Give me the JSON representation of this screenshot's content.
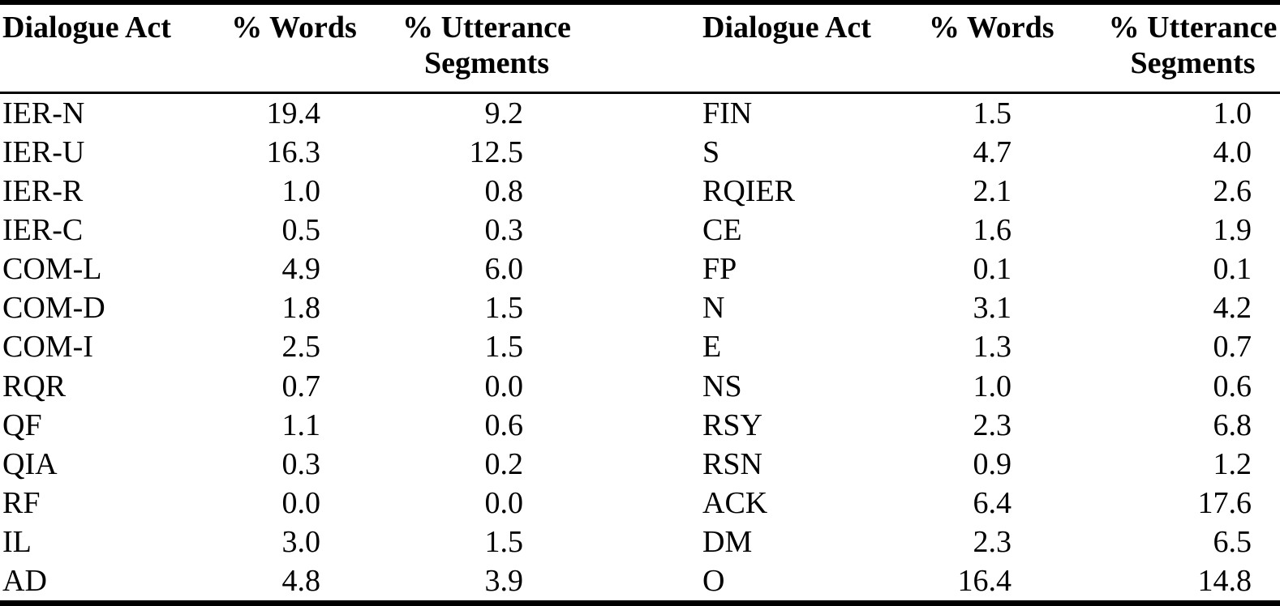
{
  "page": {
    "background_color": "#ffffff",
    "text_color": "#000000",
    "rule_color": "#000000"
  },
  "table": {
    "header": {
      "dialogue_act": "Dialogue Act",
      "words": "% Words",
      "utterance_line1": "% Utterance",
      "utterance_line2": "Segments"
    },
    "left_rows": [
      {
        "act": "IER-N",
        "words": "19.4",
        "utterance": "9.2"
      },
      {
        "act": "IER-U",
        "words": "16.3",
        "utterance": "12.5"
      },
      {
        "act": "IER-R",
        "words": "1.0",
        "utterance": "0.8"
      },
      {
        "act": "IER-C",
        "words": "0.5",
        "utterance": "0.3"
      },
      {
        "act": "COM-L",
        "words": "4.9",
        "utterance": "6.0"
      },
      {
        "act": "COM-D",
        "words": "1.8",
        "utterance": "1.5"
      },
      {
        "act": "COM-I",
        "words": "2.5",
        "utterance": "1.5"
      },
      {
        "act": "RQR",
        "words": "0.7",
        "utterance": "0.0"
      },
      {
        "act": "QF",
        "words": "1.1",
        "utterance": "0.6"
      },
      {
        "act": "QIA",
        "words": "0.3",
        "utterance": "0.2"
      },
      {
        "act": "RF",
        "words": "0.0",
        "utterance": "0.0"
      },
      {
        "act": "IL",
        "words": "3.0",
        "utterance": "1.5"
      },
      {
        "act": "AD",
        "words": "4.8",
        "utterance": "3.9"
      }
    ],
    "right_rows": [
      {
        "act": "FIN",
        "words": "1.5",
        "utterance": "1.0"
      },
      {
        "act": "S",
        "words": "4.7",
        "utterance": "4.0"
      },
      {
        "act": "RQIER",
        "words": "2.1",
        "utterance": "2.6"
      },
      {
        "act": "CE",
        "words": "1.6",
        "utterance": "1.9"
      },
      {
        "act": "FP",
        "words": "0.1",
        "utterance": "0.1"
      },
      {
        "act": "N",
        "words": "3.1",
        "utterance": "4.2"
      },
      {
        "act": "E",
        "words": "1.3",
        "utterance": "0.7"
      },
      {
        "act": "NS",
        "words": "1.0",
        "utterance": "0.6"
      },
      {
        "act": "RSY",
        "words": "2.3",
        "utterance": "6.8"
      },
      {
        "act": "RSN",
        "words": "0.9",
        "utterance": "1.2"
      },
      {
        "act": "ACK",
        "words": "6.4",
        "utterance": "17.6"
      },
      {
        "act": "DM",
        "words": "2.3",
        "utterance": "6.5"
      },
      {
        "act": "O",
        "words": "16.4",
        "utterance": "14.8"
      }
    ]
  }
}
